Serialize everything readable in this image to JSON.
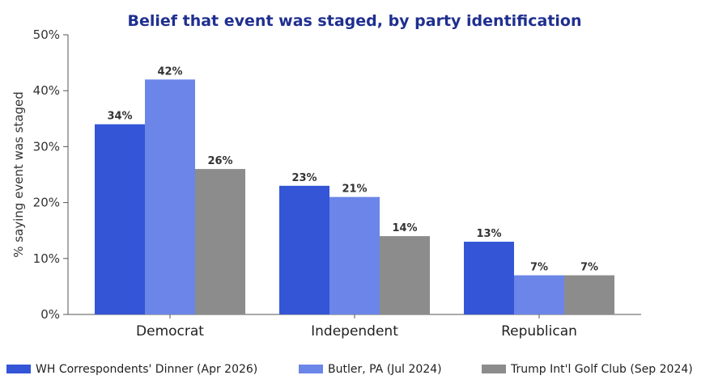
{
  "chart_data": {
    "type": "bar",
    "title": "Belief that event was staged, by party identification",
    "xlabel": "",
    "ylabel": "% saying event was staged",
    "categories": [
      "Democrat",
      "Independent",
      "Republican"
    ],
    "ylim": [
      0,
      50
    ],
    "yticks": [
      0,
      10,
      20,
      30,
      40,
      50
    ],
    "ytick_labels": [
      "0%",
      "10%",
      "20%",
      "30%",
      "40%",
      "50%"
    ],
    "value_suffix": "%",
    "grid": false,
    "legend_position": "bottom",
    "series": [
      {
        "name": "WH Correspondents' Dinner (Apr 2026)",
        "color": "#3355d6",
        "values": [
          34,
          23,
          13
        ]
      },
      {
        "name": "Butler, PA (Jul 2024)",
        "color": "#6b86e8",
        "values": [
          42,
          21,
          7
        ]
      },
      {
        "name": "Trump Int'l Golf Club (Sep 2024)",
        "color": "#8c8c8c",
        "values": [
          26,
          14,
          7
        ]
      }
    ]
  }
}
